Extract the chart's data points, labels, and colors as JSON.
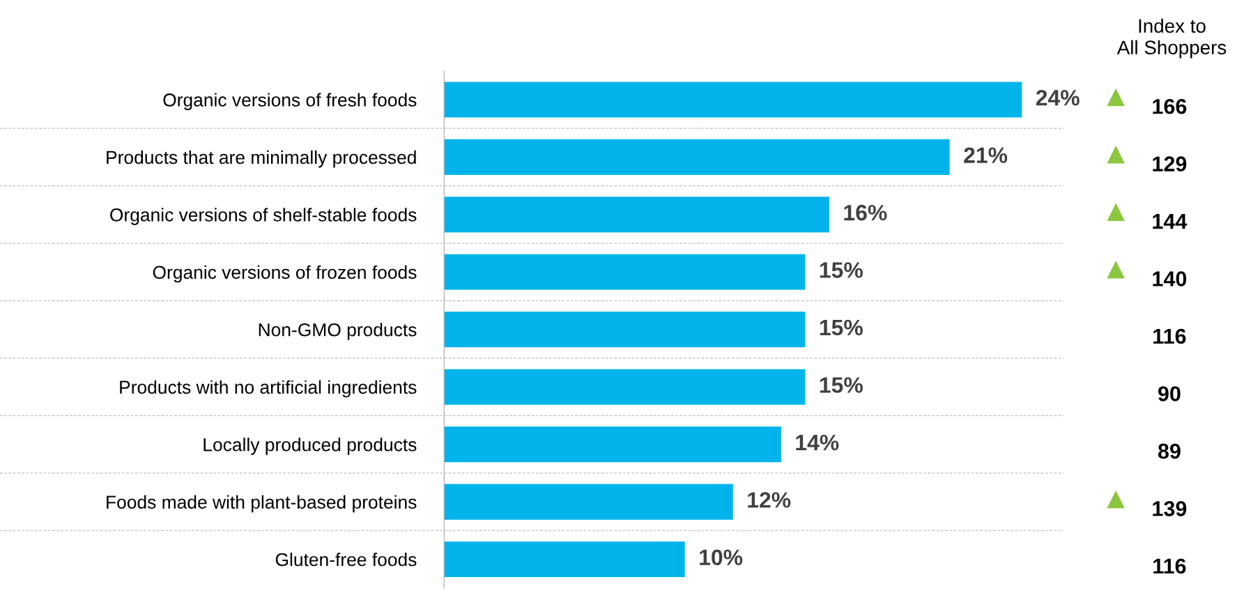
{
  "chart_data": {
    "type": "bar",
    "orientation": "horizontal",
    "categories": [
      "Organic versions of fresh foods",
      "Products that are minimally processed",
      "Organic versions of shelf-stable foods",
      "Organic versions of frozen foods",
      "Non-GMO products",
      "Products with no artificial ingredients",
      "Locally produced products",
      "Foods made with plant-based proteins",
      "Gluten-free foods"
    ],
    "values": [
      24,
      21,
      16,
      15,
      15,
      15,
      14,
      12,
      10
    ],
    "value_labels": [
      "24%",
      "21%",
      "16%",
      "15%",
      "15%",
      "15%",
      "14%",
      "12%",
      "10%"
    ],
    "color": "#00b4eb",
    "tick_labels": "y",
    "grid": "y",
    "annotations": [
      "Index to\nAll Shoppers",
      "▲",
      "166",
      "▲",
      "129",
      "▲",
      "144",
      "▲",
      "140",
      "116",
      "90",
      "89",
      "▲",
      "139",
      "116"
    ]
  }
}
